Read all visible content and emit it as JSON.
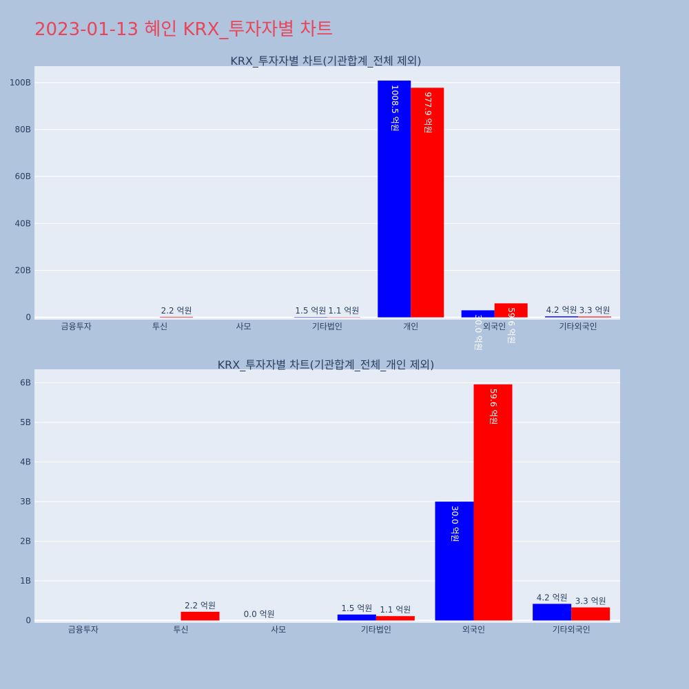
{
  "page": {
    "title": "2023-01-13 혜인 KRX_투자자별 차트",
    "background": "#b0c4de",
    "title_color": "#e8455b",
    "plot_background": "#e5ecf6"
  },
  "chart_data": [
    {
      "type": "bar",
      "title": "KRX_투자자별 차트(기관합계_전체 제외)",
      "categories": [
        "금융투자",
        "투신",
        "사모",
        "기타법인",
        "개인",
        "외국인",
        "기타외국인"
      ],
      "series": [
        {
          "color": "#0000ff",
          "values": [
            0,
            0,
            0,
            150000000,
            100850000000,
            3000000000,
            420000000
          ],
          "labels": [
            "",
            "",
            "",
            "1.5 억원",
            "1008.5 억원",
            "30.0 억원",
            "4.2 억원"
          ]
        },
        {
          "color": "#ff0000",
          "values": [
            0,
            220000000,
            0,
            110000000,
            97790000000,
            5960000000,
            330000000
          ],
          "labels": [
            "",
            "2.2 억원",
            "",
            "1.1 억원",
            "977.9 억원",
            "59.6 억원",
            "3.3 억원"
          ]
        }
      ],
      "yticks": [
        0,
        20000000000,
        40000000000,
        60000000000,
        80000000000,
        100000000000
      ],
      "ytick_labels": [
        "0",
        "20B",
        "40B",
        "60B",
        "80B",
        "100B"
      ],
      "ylim": [
        -1000000000,
        107000000000
      ],
      "grid": true
    },
    {
      "type": "bar",
      "title": "KRX_투자자별 차트(기관합계_전체_개인 제외)",
      "categories": [
        "금융투자",
        "투신",
        "사모",
        "기타법인",
        "외국인",
        "기타외국인"
      ],
      "series": [
        {
          "color": "#0000ff",
          "values": [
            0,
            0,
            0,
            150000000,
            3000000000,
            420000000
          ],
          "labels": [
            "",
            "",
            "0.0 억원",
            "1.5 억원",
            "30.0 억원",
            "4.2 억원"
          ]
        },
        {
          "color": "#ff0000",
          "values": [
            0,
            220000000,
            0,
            110000000,
            5960000000,
            330000000
          ],
          "labels": [
            "",
            "2.2 억원",
            "",
            "1.1 억원",
            "59.6 억원",
            "3.3 억원"
          ]
        }
      ],
      "yticks": [
        0,
        1000000000,
        2000000000,
        3000000000,
        4000000000,
        5000000000,
        6000000000
      ],
      "ytick_labels": [
        "0",
        "1B",
        "2B",
        "3B",
        "4B",
        "5B",
        "6B"
      ],
      "ylim": [
        -60000000,
        6340000000
      ],
      "grid": true
    }
  ]
}
